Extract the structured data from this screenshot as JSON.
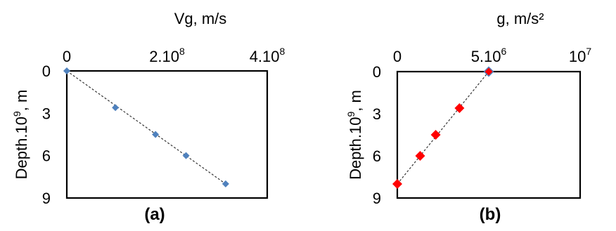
{
  "chart_data": [
    {
      "type": "scatter",
      "panel_label": "(a)",
      "xlabel": "Vg, m/s",
      "ylabel_main": "Depth.10",
      "ylabel_sup": "9",
      "ylabel_tail": ", m",
      "xlim": [
        0,
        400000000
      ],
      "ylim": [
        0,
        9
      ],
      "y_inverted": true,
      "x_axis_position": "top",
      "x_ticks": [
        {
          "value": 0,
          "main": "0",
          "sup": ""
        },
        {
          "value": 200000000,
          "main": "2.10",
          "sup": "8"
        },
        {
          "value": 400000000,
          "main": "4.10",
          "sup": "8"
        }
      ],
      "y_ticks": [
        {
          "value": 0,
          "label": "0"
        },
        {
          "value": 3,
          "label": "3"
        },
        {
          "value": 6,
          "label": "6"
        },
        {
          "value": 9,
          "label": "9"
        }
      ],
      "points": [
        {
          "x": 0,
          "y": 0
        },
        {
          "x": 97000000,
          "y": 2.6
        },
        {
          "x": 177000000,
          "y": 4.5
        },
        {
          "x": 238000000,
          "y": 6.0
        },
        {
          "x": 317000000,
          "y": 8.0
        }
      ],
      "trendline": {
        "from": {
          "x": 0,
          "y": 0
        },
        "to": {
          "x": 317000000,
          "y": 8.0
        }
      },
      "marker_color": "#4f81bd",
      "grid": false,
      "legend": "none"
    },
    {
      "type": "scatter",
      "panel_label": "(b)",
      "xlabel": "g, m/s²",
      "ylabel_main": "Depth.10",
      "ylabel_sup": "9",
      "ylabel_tail": ", m",
      "xlim": [
        0,
        10000000
      ],
      "ylim": [
        0,
        9
      ],
      "y_inverted": true,
      "x_axis_position": "top",
      "x_ticks": [
        {
          "value": 0,
          "main": "0",
          "sup": ""
        },
        {
          "value": 5000000,
          "main": "5.10",
          "sup": "6"
        },
        {
          "value": 10000000,
          "main": "10",
          "sup": "7"
        }
      ],
      "y_ticks": [
        {
          "value": 0,
          "label": "0"
        },
        {
          "value": 3,
          "label": "3"
        },
        {
          "value": 6,
          "label": "6"
        },
        {
          "value": 9,
          "label": "9"
        }
      ],
      "points": [
        {
          "x": 0,
          "y": 8.0
        },
        {
          "x": 1250000,
          "y": 6.0
        },
        {
          "x": 2100000,
          "y": 4.5
        },
        {
          "x": 3400000,
          "y": 2.6
        },
        {
          "x": 5000000,
          "y": 0
        }
      ],
      "trendline": {
        "from": {
          "x": 0,
          "y": 8.0
        },
        "to": {
          "x": 5000000,
          "y": 0
        }
      },
      "marker_color": "#ff0000",
      "highlight_point_color": "#4f81bd",
      "grid": false,
      "legend": "none"
    }
  ]
}
